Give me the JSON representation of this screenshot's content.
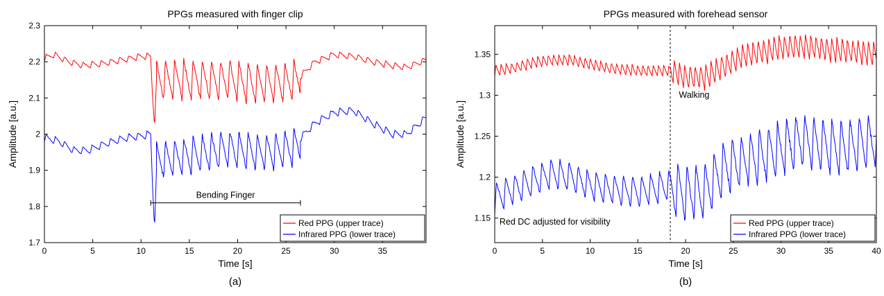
{
  "chart_data": [
    {
      "type": "line",
      "panel_label": "(a)",
      "title": "PPGs measured with finger clip",
      "xlabel": "Time [s]",
      "ylabel": "Amplitude [a.u.]",
      "xlim": [
        0,
        39.5
      ],
      "ylim": [
        1.7,
        2.3
      ],
      "xticks": [
        0,
        5,
        10,
        15,
        20,
        25,
        30,
        35
      ],
      "yticks": [
        "1.7",
        "1.8",
        "1.9",
        "2",
        "2.1",
        "2.2",
        "2.3"
      ],
      "grid": false,
      "legend_position": "bottom-right",
      "series": [
        {
          "name": "Red PPG (upper trace)",
          "color": "#ff0000",
          "period_s": 0.95,
          "segments": [
            {
              "t0": 0,
              "t1": 11.0,
              "keypoints": [
                [
                  0,
                  2.21
                ],
                [
                  1,
                  2.22
                ],
                [
                  2.5,
                  2.2
                ],
                [
                  4,
                  2.19
                ],
                [
                  6,
                  2.195
                ],
                [
                  8,
                  2.205
                ],
                [
                  10,
                  2.215
                ],
                [
                  11,
                  2.215
                ]
              ],
              "pulse_amp": 0.012
            },
            {
              "t0": 11.0,
              "t1": 11.6,
              "keypoints": [
                [
                  11.0,
                  2.21
                ],
                [
                  11.2,
                  2.1
                ],
                [
                  11.4,
                  2.02
                ],
                [
                  11.6,
                  2.15
                ]
              ],
              "pulse_amp": 0
            },
            {
              "t0": 11.6,
              "t1": 26.5,
              "keypoints": [
                [
                  11.6,
                  2.15
                ],
                [
                  13,
                  2.15
                ],
                [
                  16,
                  2.15
                ],
                [
                  19,
                  2.15
                ],
                [
                  22,
                  2.14
                ],
                [
                  24,
                  2.14
                ],
                [
                  26.5,
                  2.15
                ]
              ],
              "pulse_amp": 0.075
            },
            {
              "t0": 26.5,
              "t1": 39.5,
              "keypoints": [
                [
                  26.5,
                  2.16
                ],
                [
                  28,
                  2.2
                ],
                [
                  30,
                  2.22
                ],
                [
                  32,
                  2.215
                ],
                [
                  34,
                  2.2
                ],
                [
                  36,
                  2.19
                ],
                [
                  37.5,
                  2.185
                ],
                [
                  39.5,
                  2.205
                ]
              ],
              "pulse_amp": 0.012
            }
          ]
        },
        {
          "name": "Infrared PPG (lower trace)",
          "color": "#0000ff",
          "period_s": 0.95,
          "segments": [
            {
              "t0": 0,
              "t1": 11.0,
              "keypoints": [
                [
                  0,
                  1.99
                ],
                [
                  1.5,
                  1.98
                ],
                [
                  3,
                  1.955
                ],
                [
                  4.5,
                  1.955
                ],
                [
                  6.5,
                  1.975
                ],
                [
                  8.5,
                  1.99
                ],
                [
                  10,
                  1.995
                ],
                [
                  11,
                  2.0
                ]
              ],
              "pulse_amp": 0.014
            },
            {
              "t0": 11.0,
              "t1": 11.6,
              "keypoints": [
                [
                  11.0,
                  2.0
                ],
                [
                  11.2,
                  1.85
                ],
                [
                  11.4,
                  1.74
                ],
                [
                  11.6,
                  1.9
                ]
              ],
              "pulse_amp": 0
            },
            {
              "t0": 11.6,
              "t1": 26.5,
              "keypoints": [
                [
                  11.6,
                  1.93
                ],
                [
                  13,
                  1.93
                ],
                [
                  16,
                  1.945
                ],
                [
                  19,
                  1.96
                ],
                [
                  22,
                  1.95
                ],
                [
                  24,
                  1.95
                ],
                [
                  26.5,
                  1.97
                ]
              ],
              "pulse_amp": 0.07
            },
            {
              "t0": 26.5,
              "t1": 39.5,
              "keypoints": [
                [
                  26.5,
                  1.99
                ],
                [
                  28,
                  2.03
                ],
                [
                  30,
                  2.06
                ],
                [
                  32,
                  2.065
                ],
                [
                  34,
                  2.03
                ],
                [
                  36,
                  2.0
                ],
                [
                  37.5,
                  2.0
                ],
                [
                  39.5,
                  2.045
                ]
              ],
              "pulse_amp": 0.014
            }
          ]
        }
      ],
      "annotations": [
        {
          "type": "range",
          "text": "Bending Finger",
          "x_start": 11.0,
          "x_end": 26.5,
          "y": 1.81
        }
      ]
    },
    {
      "type": "line",
      "panel_label": "(b)",
      "title": "PPGs measured with forehead sensor",
      "xlabel": "Time [s]",
      "ylabel": "Amplitude [a.u.]",
      "xlim": [
        0,
        40
      ],
      "ylim": [
        1.12,
        1.385
      ],
      "xticks": [
        0,
        5,
        10,
        15,
        20,
        25,
        30,
        35,
        40
      ],
      "yticks": [
        "1.15",
        "1.2",
        "1.25",
        "1.3",
        "1.35"
      ],
      "grid": false,
      "legend_position": "bottom-right",
      "series": [
        {
          "name": "Red PPG (upper trace)",
          "color": "#ff0000",
          "period_s": 0.55,
          "segments": [
            {
              "t0": 0,
              "t1": 18.4,
              "keypoints": [
                [
                  0,
                  1.33
                ],
                [
                  2,
                  1.333
                ],
                [
                  4,
                  1.34
                ],
                [
                  6,
                  1.343
                ],
                [
                  8,
                  1.343
                ],
                [
                  10,
                  1.338
                ],
                [
                  12,
                  1.333
                ],
                [
                  15,
                  1.33
                ],
                [
                  18.4,
                  1.33
                ]
              ],
              "pulse_amp": 0.009
            },
            {
              "t0": 18.4,
              "t1": 40,
              "keypoints": [
                [
                  18.4,
                  1.33
                ],
                [
                  20,
                  1.322
                ],
                [
                  22,
                  1.322
                ],
                [
                  24,
                  1.335
                ],
                [
                  26,
                  1.348
                ],
                [
                  28,
                  1.353
                ],
                [
                  30,
                  1.358
                ],
                [
                  32,
                  1.36
                ],
                [
                  34,
                  1.358
                ],
                [
                  36,
                  1.355
                ],
                [
                  38,
                  1.353
                ],
                [
                  40,
                  1.35
                ]
              ],
              "pulse_amp": 0.02
            }
          ]
        },
        {
          "name": "Infrared PPG (lower trace)",
          "color": "#0000ff",
          "period_s": 0.95,
          "segments": [
            {
              "t0": 0,
              "t1": 18.4,
              "keypoints": [
                [
                  0,
                  1.175
                ],
                [
                  2,
                  1.185
                ],
                [
                  4,
                  1.195
                ],
                [
                  6,
                  1.205
                ],
                [
                  8,
                  1.2
                ],
                [
                  10,
                  1.19
                ],
                [
                  12,
                  1.185
                ],
                [
                  15,
                  1.182
                ],
                [
                  18.4,
                  1.19
                ]
              ],
              "pulse_amp": 0.025
            },
            {
              "t0": 18.4,
              "t1": 40,
              "keypoints": [
                [
                  18.4,
                  1.185
                ],
                [
                  20,
                  1.18
                ],
                [
                  22,
                  1.182
                ],
                [
                  24,
                  1.21
                ],
                [
                  26,
                  1.22
                ],
                [
                  28,
                  1.225
                ],
                [
                  30,
                  1.235
                ],
                [
                  32,
                  1.245
                ],
                [
                  34,
                  1.24
                ],
                [
                  36,
                  1.235
                ],
                [
                  38,
                  1.24
                ],
                [
                  40,
                  1.245
                ]
              ],
              "pulse_amp": 0.045
            }
          ]
        }
      ],
      "annotations": [
        {
          "type": "vline",
          "x": 18.4
        },
        {
          "type": "text",
          "text": "Walking",
          "x": 19.3,
          "y": 1.297
        },
        {
          "type": "text",
          "text": "Red DC adjusted for visibility",
          "x": 0.5,
          "y": 1.142
        }
      ]
    }
  ]
}
